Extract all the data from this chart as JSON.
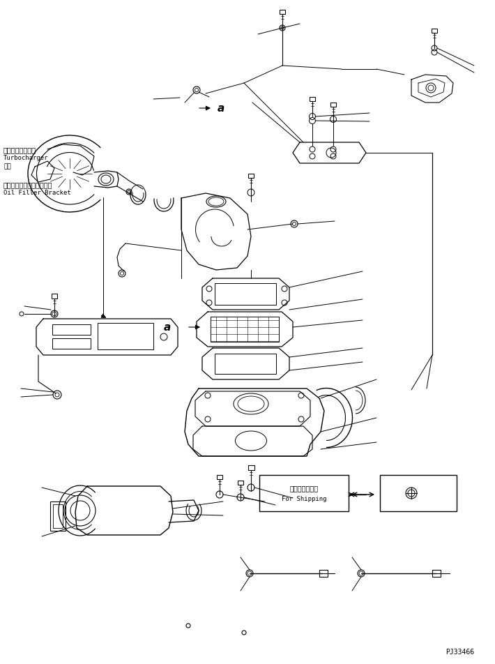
{
  "background_color": "#ffffff",
  "line_color": "#000000",
  "fig_width": 7.1,
  "fig_height": 9.53,
  "dpi": 100,
  "labels": {
    "turbocharger_jp": "ターボチャージャ",
    "turbocharger_en": "Turbocharger",
    "turbocharger_num": "１１",
    "oil_filler_jp": "オイルフィルタブラケット",
    "oil_filler_en": "Oil Filler Bracket",
    "shipping_jp": "運　搬　部　品",
    "shipping_en": "For Shipping",
    "label_a1": "a",
    "label_a2": "a",
    "part_num": "PJ33466"
  },
  "text_color": "#000000",
  "font_size_jp": 7,
  "font_size_en": 6.5,
  "font_size_label": 11
}
